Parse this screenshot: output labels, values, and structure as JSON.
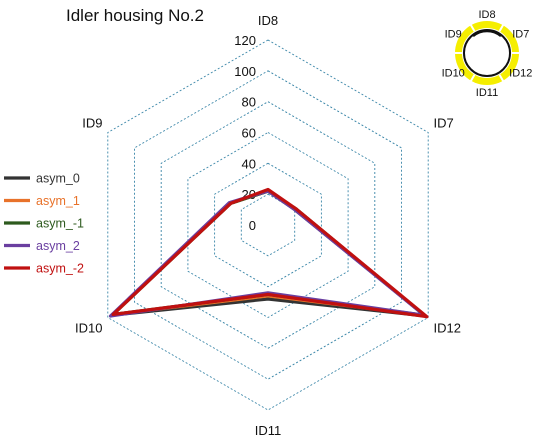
{
  "chart_data": {
    "type": "radar",
    "title": "Idler housing No.2",
    "axes": [
      "ID8",
      "ID7",
      "ID12",
      "ID11",
      "ID10",
      "ID9"
    ],
    "ticks": [
      "0",
      "20",
      "40",
      "60",
      "80",
      "100",
      "120"
    ],
    "tick_values": [
      0,
      20,
      40,
      60,
      80,
      100,
      120
    ],
    "rmax": 120,
    "grid": true,
    "legend_position": "left",
    "series": [
      {
        "name": "asym_0",
        "color": "#333333",
        "values": [
          22,
          20,
          118,
          48,
          117,
          28
        ]
      },
      {
        "name": "asym_1",
        "color": "#e8722a",
        "values": [
          22,
          21,
          117,
          46,
          116,
          28
        ]
      },
      {
        "name": "asym_-1",
        "color": "#2d5a1e",
        "values": [
          22,
          21,
          117,
          45,
          116,
          28
        ]
      },
      {
        "name": "asym_2",
        "color": "#6a3fa0",
        "values": [
          22,
          20,
          117,
          44,
          118,
          29
        ]
      },
      {
        "name": "asym_-2",
        "color": "#c01010",
        "values": [
          23,
          21,
          119,
          45,
          116,
          28
        ]
      }
    ]
  },
  "inset": {
    "labels": [
      "ID8",
      "ID7",
      "ID12",
      "ID11",
      "ID10",
      "ID9"
    ],
    "highlight_color": "#f5ee00"
  }
}
